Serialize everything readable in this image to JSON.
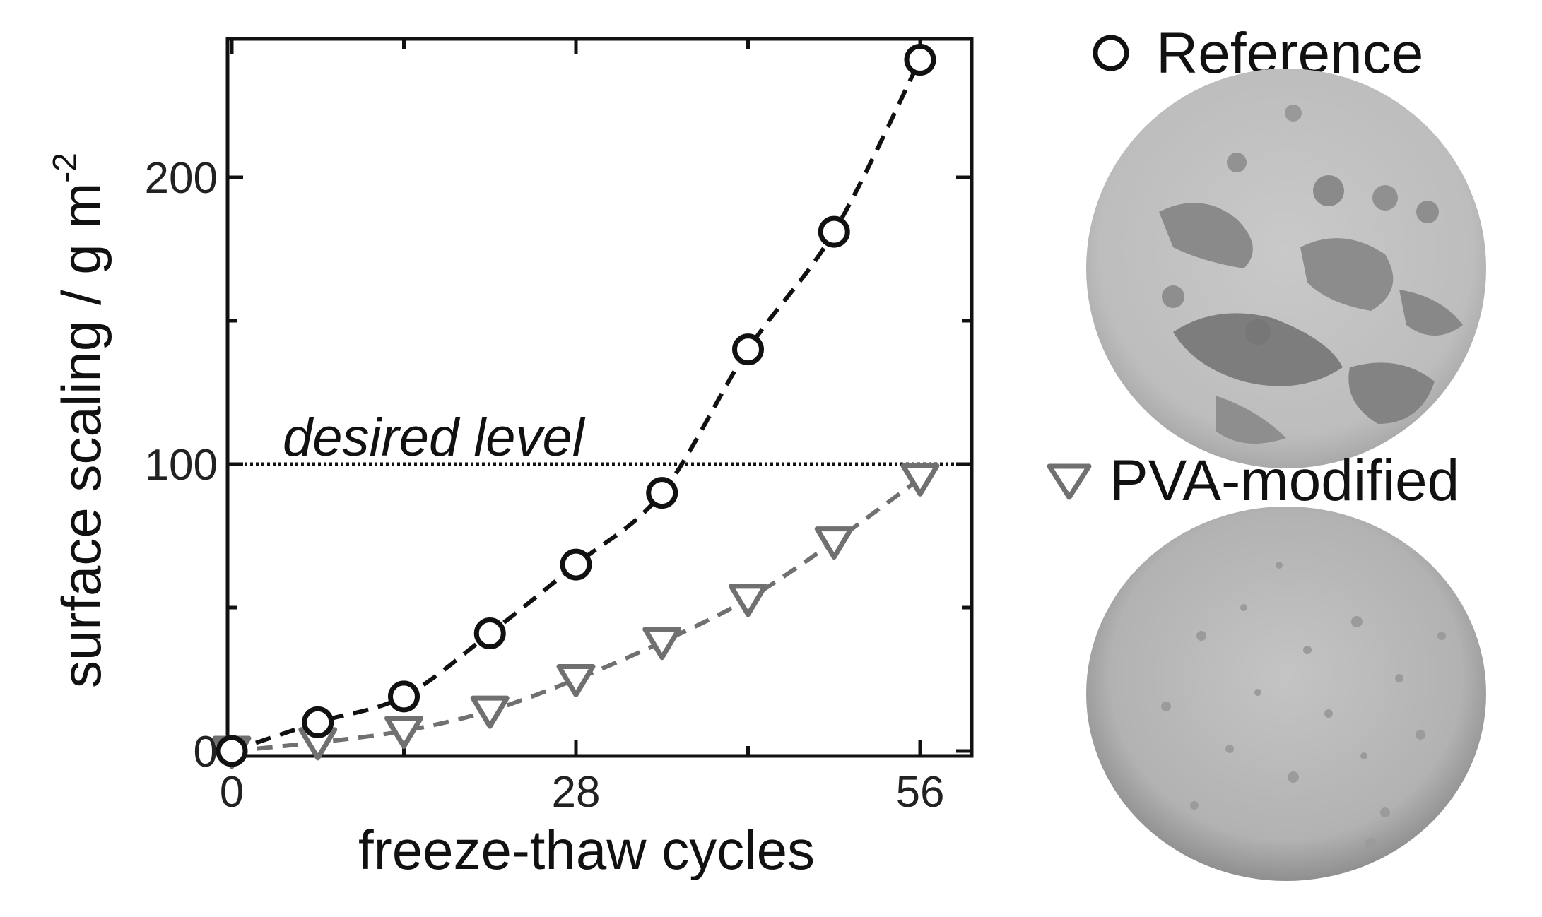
{
  "chart_data": {
    "type": "line",
    "xlabel": "freeze-thaw cycles",
    "ylabel": "surface scaling / g m",
    "ylabel_superscript": "-2",
    "xlim": [
      0,
      60
    ],
    "ylim": [
      0,
      250
    ],
    "x_ticks": [
      0,
      28,
      56
    ],
    "x_tick_labels": [
      "0",
      "28",
      "56"
    ],
    "y_ticks": [
      0,
      100,
      200
    ],
    "y_tick_labels": [
      "0",
      "100",
      "200"
    ],
    "grid": false,
    "series": [
      {
        "name": "Reference",
        "marker": "circle",
        "color": "#111111",
        "line": "dashed",
        "x": [
          0,
          7,
          14,
          21,
          28,
          35,
          42,
          49,
          56
        ],
        "y": [
          0,
          10,
          19,
          41,
          65,
          90,
          140,
          181,
          241
        ]
      },
      {
        "name": "PVA-modified",
        "marker": "triangle-down",
        "color": "#707070",
        "line": "dashed",
        "x": [
          0,
          7,
          14,
          21,
          28,
          35,
          42,
          49,
          56
        ],
        "y": [
          0,
          3,
          7,
          14,
          25,
          38,
          53,
          73,
          95
        ]
      }
    ],
    "annotations": [
      {
        "text": "desired level",
        "y": 100,
        "style": "dotted horizontal line"
      }
    ],
    "legend_placement": "right, beside sample photographs"
  },
  "photos": {
    "reference": {
      "name": "Reference",
      "surface": "heavily scaled, patchy dark/light surface"
    },
    "pva": {
      "name": "PVA-modified",
      "surface": "uniform surface with fine speckles"
    }
  }
}
